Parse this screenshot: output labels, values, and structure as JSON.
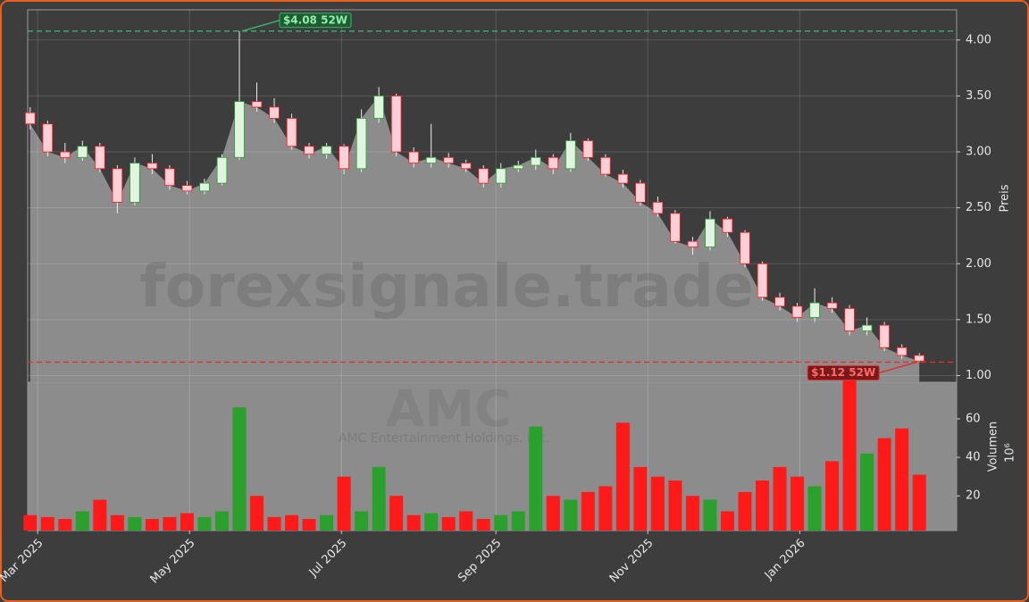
{
  "chart_data": {
    "type": "candlestick",
    "x": [
      -3,
      4,
      11,
      18,
      25,
      32,
      39,
      46,
      53,
      60,
      67,
      74,
      81,
      88,
      95,
      102,
      109,
      116,
      123,
      130,
      137,
      144,
      151,
      158,
      165,
      172,
      179,
      186,
      193,
      200,
      207,
      214,
      221,
      228,
      235,
      242,
      249,
      256,
      263,
      270,
      277,
      284,
      291,
      298,
      305,
      312,
      319,
      326,
      333,
      340,
      347,
      354
    ],
    "open": [
      3.35,
      3.25,
      3.0,
      2.95,
      3.05,
      2.85,
      2.55,
      2.9,
      2.85,
      2.7,
      2.65,
      2.72,
      2.95,
      3.45,
      3.4,
      3.3,
      3.05,
      2.98,
      3.05,
      2.85,
      3.3,
      3.5,
      3.0,
      2.9,
      2.95,
      2.9,
      2.85,
      2.72,
      2.85,
      2.88,
      2.95,
      2.85,
      3.1,
      2.95,
      2.8,
      2.72,
      2.55,
      2.45,
      2.2,
      2.15,
      2.4,
      2.28,
      2.0,
      1.7,
      1.62,
      1.52,
      1.65,
      1.6,
      1.4,
      1.45,
      1.25,
      1.18
    ],
    "high": [
      3.4,
      3.28,
      3.08,
      3.1,
      3.08,
      2.88,
      2.95,
      2.98,
      2.88,
      2.74,
      2.76,
      2.98,
      4.08,
      3.62,
      3.48,
      3.34,
      3.08,
      3.08,
      3.07,
      3.38,
      3.58,
      3.52,
      3.04,
      3.25,
      2.99,
      2.93,
      2.88,
      2.9,
      2.92,
      3.02,
      2.98,
      3.17,
      3.12,
      2.98,
      2.84,
      2.75,
      2.6,
      2.48,
      2.24,
      2.47,
      2.42,
      2.3,
      2.02,
      1.74,
      1.65,
      1.78,
      1.7,
      1.63,
      1.52,
      1.48,
      1.28,
      1.2
    ],
    "low": [
      3.2,
      2.96,
      2.9,
      2.92,
      2.82,
      2.45,
      2.52,
      2.8,
      2.66,
      2.62,
      2.62,
      2.7,
      2.93,
      3.36,
      3.26,
      3.02,
      2.94,
      2.94,
      2.8,
      2.82,
      3.26,
      2.96,
      2.86,
      2.86,
      2.86,
      2.82,
      2.68,
      2.68,
      2.82,
      2.84,
      2.8,
      2.82,
      2.92,
      2.78,
      2.68,
      2.52,
      2.42,
      2.18,
      2.08,
      2.12,
      2.24,
      1.97,
      1.67,
      1.58,
      1.48,
      1.48,
      1.56,
      1.36,
      1.36,
      1.22,
      1.15,
      1.12
    ],
    "close": [
      3.25,
      3.0,
      2.95,
      3.05,
      2.85,
      2.55,
      2.9,
      2.85,
      2.7,
      2.65,
      2.72,
      2.95,
      3.45,
      3.4,
      3.3,
      3.05,
      2.98,
      3.05,
      2.85,
      3.3,
      3.5,
      3.0,
      2.9,
      2.95,
      2.9,
      2.85,
      2.72,
      2.85,
      2.88,
      2.95,
      2.85,
      3.1,
      2.95,
      2.8,
      2.72,
      2.55,
      2.45,
      2.2,
      2.15,
      2.4,
      2.28,
      2.0,
      1.7,
      1.62,
      1.52,
      1.65,
      1.6,
      1.4,
      1.45,
      1.25,
      1.18,
      1.13
    ],
    "volume": [
      10,
      9,
      8,
      12,
      18,
      10,
      9,
      8,
      9,
      11,
      9,
      12,
      66,
      20,
      9,
      10,
      8,
      10,
      30,
      12,
      35,
      20,
      10,
      11,
      9,
      12,
      8,
      10,
      12,
      56,
      20,
      18,
      22,
      25,
      58,
      35,
      30,
      28,
      20,
      18,
      12,
      22,
      28,
      35,
      30,
      25,
      38,
      80,
      42,
      50,
      55,
      31
    ],
    "up_color": "#2ca02c",
    "down_color": "#ff1a1a",
    "area_color": "#8c8c8c",
    "xlim": [
      -4,
      369
    ],
    "xticks": [
      {
        "value": 0,
        "label": "Mar 2025"
      },
      {
        "value": 61,
        "label": "May 2025"
      },
      {
        "value": 122,
        "label": "Jul 2025"
      },
      {
        "value": 184,
        "label": "Sep 2025"
      },
      {
        "value": 245,
        "label": "Nov 2025"
      },
      {
        "value": 306,
        "label": "Jan 2026"
      }
    ],
    "ylim": [
      0.94,
      4.27
    ],
    "yticks": [
      {
        "value": 1,
        "label": "1.00"
      },
      {
        "value": 1.5,
        "label": "1.50"
      },
      {
        "value": 2,
        "label": "2.00"
      },
      {
        "value": 2.5,
        "label": "2.50"
      },
      {
        "value": 3,
        "label": "3.00"
      },
      {
        "value": 3.5,
        "label": "3.50"
      },
      {
        "value": 4,
        "label": "4.00"
      }
    ],
    "ylabel": "Preis",
    "volume_ylim": [
      2,
      79
    ],
    "volume_yticks": [
      20,
      40,
      60
    ],
    "volume_ylabel": "Volumen",
    "volume_offset": "10⁶",
    "annotations": [
      {
        "text": "$4.08 52W",
        "value": 4.08,
        "color": "#3cb371"
      },
      {
        "text": "$1.12 52W",
        "value": 1.12,
        "color": "#e03030"
      }
    ],
    "watermark": "forexsignale.trade",
    "ticker": "AMC",
    "company": "AMC Entertainment Holdings, Inc.",
    "grid": true
  }
}
